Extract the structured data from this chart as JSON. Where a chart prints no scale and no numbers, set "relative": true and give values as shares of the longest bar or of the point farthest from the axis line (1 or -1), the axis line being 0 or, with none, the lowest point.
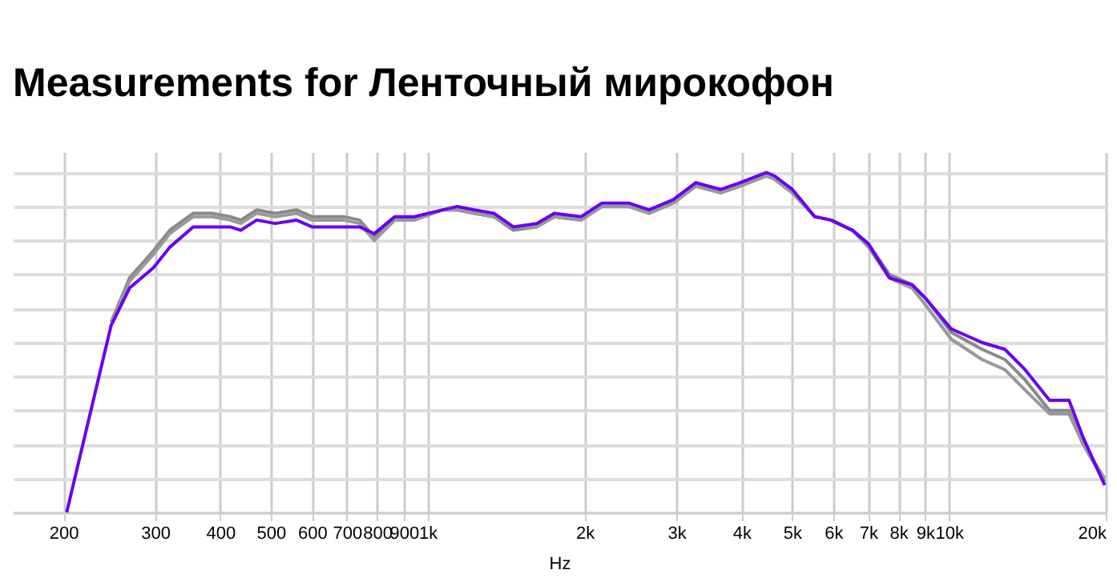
{
  "chart_data": {
    "type": "line",
    "title": "Measurements for Ленточный мирокофон",
    "xlabel": "Hz",
    "relative": true,
    "log": "x",
    "grid": true,
    "legend": false,
    "marker": "none",
    "line_style": "solid",
    "x": [
      203,
      247,
      268,
      298,
      320,
      355,
      386,
      418,
      438,
      470,
      510,
      560,
      600,
      690,
      740,
      790,
      865,
      945,
      1070,
      1140,
      1230,
      1340,
      1460,
      1620,
      1750,
      1970,
      2160,
      2430,
      2660,
      2960,
      3270,
      3650,
      3980,
      4470,
      4630,
      5010,
      5530,
      5940,
      6530,
      7010,
      7690,
      8500,
      9020,
      10100,
      11570,
      12800,
      14000,
      15600,
      17000,
      18100,
      19900
    ],
    "xlim": [
      160,
      20000
    ],
    "xticks": [
      200,
      300,
      400,
      500,
      600,
      700,
      800,
      900,
      {
        "value": 1000,
        "label": "1k"
      },
      {
        "value": 2000,
        "label": "2k"
      },
      {
        "value": 3000,
        "label": "3k"
      },
      {
        "value": 4000,
        "label": "4k"
      },
      {
        "value": 5000,
        "label": "5k"
      },
      {
        "value": 6000,
        "label": "6k"
      },
      {
        "value": 7000,
        "label": "7k"
      },
      {
        "value": 8000,
        "label": "8k"
      },
      {
        "value": 9000,
        "label": "9k"
      },
      {
        "value": 10000,
        "label": "10k"
      },
      {
        "value": 20000,
        "label": "20k"
      }
    ],
    "series": [
      {
        "color": "#888888",
        "values": [
          null,
          0.56,
          0.69,
          0.77,
          0.83,
          0.88,
          0.88,
          0.87,
          0.86,
          0.89,
          0.88,
          0.89,
          0.87,
          0.87,
          0.86,
          0.81,
          0.86,
          0.87,
          0.89,
          0.89,
          0.88,
          0.87,
          0.83,
          0.84,
          0.87,
          0.86,
          0.9,
          0.9,
          0.88,
          0.91,
          0.96,
          0.94,
          0.96,
          0.99,
          0.98,
          0.94,
          0.87,
          0.86,
          0.83,
          0.79,
          0.7,
          0.67,
          0.63,
          0.53,
          0.48,
          0.45,
          0.39,
          0.3,
          0.3,
          0.2,
          0.09
        ]
      },
      {
        "color": "#999999",
        "values": [
          null,
          0.56,
          0.68,
          0.76,
          0.82,
          0.87,
          0.87,
          0.86,
          0.85,
          0.88,
          0.87,
          0.88,
          0.86,
          0.86,
          0.85,
          0.8,
          0.86,
          0.86,
          0.89,
          0.89,
          0.88,
          0.87,
          0.84,
          0.84,
          0.87,
          0.86,
          0.9,
          0.9,
          0.88,
          0.91,
          0.96,
          0.94,
          0.96,
          0.99,
          0.98,
          0.94,
          0.87,
          0.86,
          0.83,
          0.78,
          0.69,
          0.66,
          0.61,
          0.51,
          0.45,
          0.42,
          0.36,
          0.29,
          0.29,
          0.2,
          0.1
        ]
      },
      {
        "color": "#6a00f0",
        "values": [
          0,
          0.55,
          0.66,
          0.72,
          0.78,
          0.84,
          0.84,
          0.84,
          0.83,
          0.86,
          0.85,
          0.86,
          0.84,
          0.84,
          0.84,
          0.82,
          0.87,
          0.87,
          0.89,
          0.9,
          0.89,
          0.88,
          0.84,
          0.85,
          0.88,
          0.87,
          0.91,
          0.91,
          0.89,
          0.92,
          0.97,
          0.95,
          0.97,
          1,
          0.99,
          0.95,
          0.87,
          0.86,
          0.83,
          0.79,
          0.69,
          0.67,
          0.63,
          0.54,
          0.5,
          0.48,
          0.42,
          0.33,
          0.33,
          0.22,
          0.08
        ]
      }
    ]
  }
}
